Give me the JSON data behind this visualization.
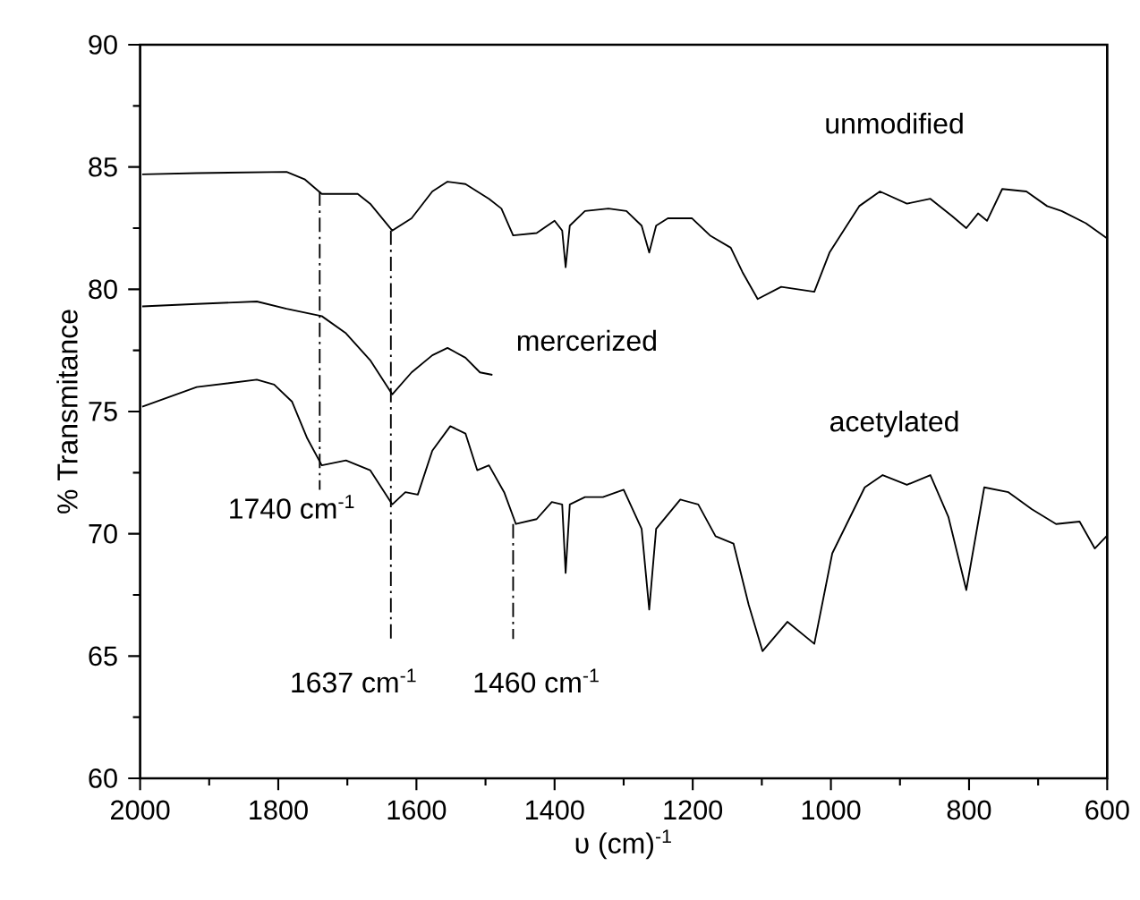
{
  "chart_data": {
    "type": "line",
    "xlabel": "υ (cm)$^{-1}$",
    "ylabel": "% Transmitance",
    "xlim": [
      2000,
      600
    ],
    "xticks": [
      2000,
      1800,
      1600,
      1400,
      1200,
      1000,
      800,
      600
    ],
    "ylim": [
      60,
      90
    ],
    "yticks": [
      60,
      65,
      70,
      75,
      80,
      85,
      90
    ],
    "grid": false,
    "legend": false,
    "marker": "none",
    "series": [
      {
        "name": "unmodified",
        "color": "#000000",
        "line_style": "solid",
        "x": [
          1997,
          1918,
          1788,
          1762,
          1737,
          1685,
          1667,
          1635,
          1607,
          1577,
          1555,
          1529,
          1495,
          1477,
          1460,
          1426,
          1400,
          1389,
          1384,
          1378,
          1356,
          1322,
          1296,
          1274,
          1263,
          1253,
          1236,
          1201,
          1175,
          1145,
          1128,
          1106,
          1072,
          1024,
          1002,
          959,
          929,
          890,
          856,
          825,
          804,
          787,
          774,
          752,
          717,
          687,
          666,
          631,
          601
        ],
        "values": [
          84.7,
          84.75,
          84.8,
          84.5,
          83.9,
          83.9,
          83.5,
          82.4,
          82.9,
          84.0,
          84.4,
          84.3,
          83.7,
          83.3,
          82.2,
          82.3,
          82.8,
          82.4,
          80.9,
          82.6,
          83.2,
          83.3,
          83.2,
          82.6,
          81.5,
          82.6,
          82.9,
          82.9,
          82.2,
          81.7,
          80.7,
          79.6,
          80.1,
          79.9,
          81.5,
          83.4,
          84.0,
          83.5,
          83.7,
          83.0,
          82.5,
          83.1,
          82.8,
          84.1,
          84.0,
          83.4,
          83.2,
          82.7,
          82.1
        ]
      },
      {
        "name": "mercerized",
        "color": "#000000",
        "line_style": "solid",
        "x": [
          1997,
          1918,
          1831,
          1788,
          1737,
          1702,
          1667,
          1635,
          1607,
          1577,
          1555,
          1529,
          1508,
          1490
        ],
        "values": [
          79.3,
          79.4,
          79.5,
          79.2,
          78.9,
          78.2,
          77.1,
          75.7,
          76.6,
          77.3,
          77.6,
          77.2,
          76.6,
          76.5
        ]
      },
      {
        "name": "acetylated",
        "color": "#000000",
        "line_style": "solid",
        "x": [
          1997,
          1918,
          1831,
          1806,
          1780,
          1758,
          1737,
          1702,
          1667,
          1635,
          1616,
          1598,
          1577,
          1551,
          1529,
          1512,
          1495,
          1473,
          1456,
          1426,
          1404,
          1389,
          1384,
          1378,
          1356,
          1330,
          1300,
          1274,
          1263,
          1253,
          1218,
          1192,
          1167,
          1141,
          1119,
          1099,
          1063,
          1024,
          998,
          951,
          925,
          890,
          856,
          830,
          804,
          778,
          743,
          709,
          674,
          640,
          618,
          601
        ],
        "values": [
          75.2,
          76.0,
          76.3,
          76.1,
          75.4,
          73.9,
          72.8,
          73.0,
          72.6,
          71.2,
          71.7,
          71.6,
          73.4,
          74.4,
          74.1,
          72.6,
          72.8,
          71.7,
          70.4,
          70.6,
          71.3,
          71.2,
          68.4,
          71.2,
          71.5,
          71.5,
          71.8,
          70.2,
          66.9,
          70.2,
          71.4,
          71.2,
          69.9,
          69.6,
          67.1,
          65.2,
          66.4,
          65.5,
          69.2,
          71.9,
          72.4,
          72.0,
          72.4,
          70.7,
          67.7,
          71.9,
          71.7,
          71.0,
          70.4,
          70.5,
          69.4,
          69.9
        ]
      },
      {
        "color": "#000000",
        "line_style": "dashed",
        "x": [
          1740,
          1740
        ],
        "values": [
          84.0,
          71.8
        ]
      },
      {
        "color": "#000000",
        "line_style": "dashed",
        "x": [
          1637,
          1637
        ],
        "values": [
          82.4,
          65.7
        ]
      },
      {
        "color": "#000000",
        "line_style": "dashed",
        "x": [
          1460,
          1460
        ],
        "values": [
          70.4,
          65.7
        ]
      }
    ],
    "annotations": [
      "1740 cm$^{-1}$",
      "1637 cm$^{-1}$",
      "1460 cm$^{-1}$"
    ]
  }
}
